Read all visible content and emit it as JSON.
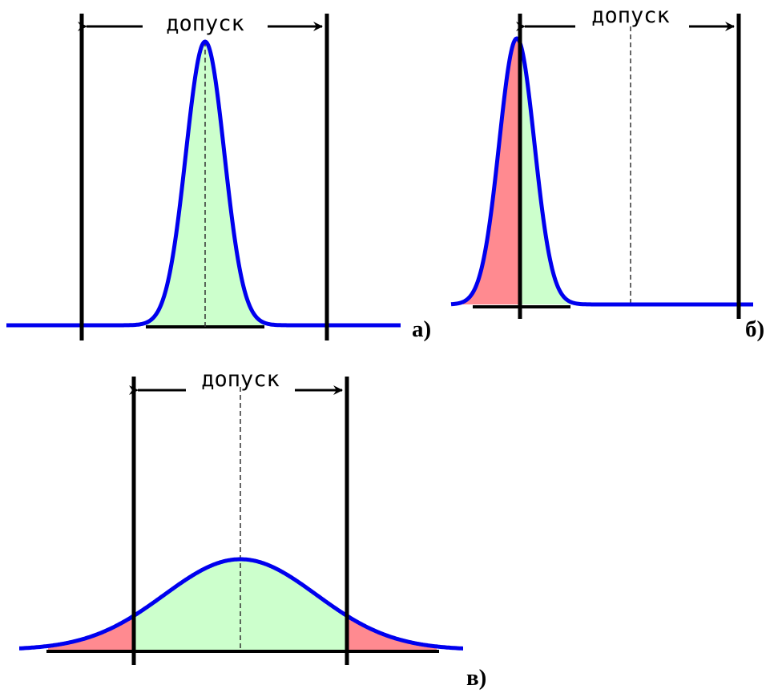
{
  "panels": [
    {
      "id": "a",
      "label": "а)",
      "tolerance_label": "допуск",
      "distribution": "narrow, centered within tolerance",
      "colors": {
        "curve": "#0000ee",
        "inside": "#ccffcc",
        "outside": "#ff8a90",
        "lines": "#000000"
      }
    },
    {
      "id": "b",
      "label": "б)",
      "tolerance_label": "допуск",
      "distribution": "narrow, shifted past the lower tolerance limit",
      "colors": {
        "curve": "#0000ee",
        "inside": "#ccffcc",
        "outside": "#ff8a90",
        "lines": "#000000"
      }
    },
    {
      "id": "v",
      "label": "в)",
      "tolerance_label": "допуск",
      "distribution": "wide, centered, tails exceed both tolerance limits",
      "colors": {
        "curve": "#0000ee",
        "inside": "#ccffcc",
        "outside": "#ff8a90",
        "lines": "#000000"
      }
    }
  ]
}
